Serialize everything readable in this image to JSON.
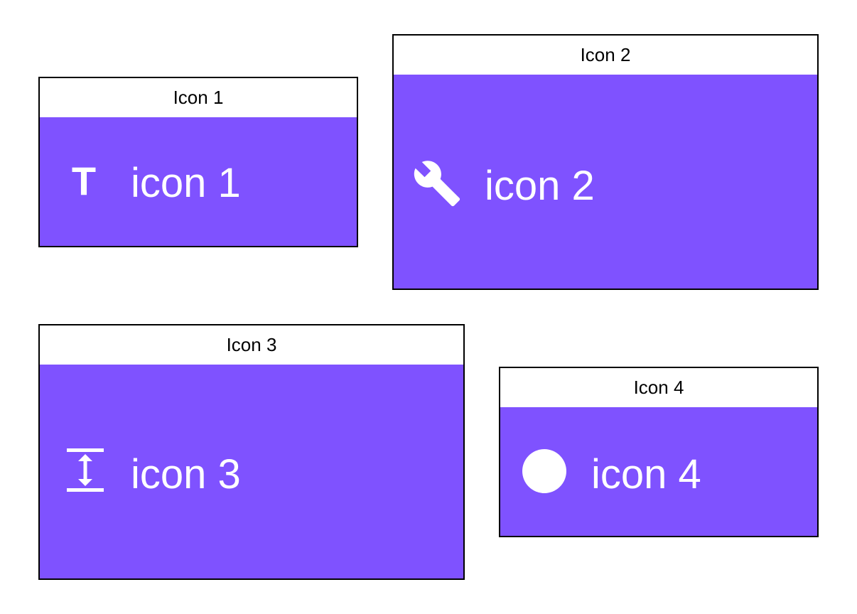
{
  "colors": {
    "card_background": "#7f52ff",
    "header_background": "#ffffff",
    "border": "#000000",
    "content_text": "#ffffff"
  },
  "cards": [
    {
      "header": "Icon 1",
      "icon": "text-format-icon",
      "icon_glyph": "T",
      "label": "icon 1"
    },
    {
      "header": "Icon 2",
      "icon": "wrench-icon",
      "label": "icon 2"
    },
    {
      "header": "Icon 3",
      "icon": "vertical-align-center-icon",
      "label": "icon 3"
    },
    {
      "header": "Icon 4",
      "icon": "circle-icon",
      "label": "icon 4"
    }
  ]
}
